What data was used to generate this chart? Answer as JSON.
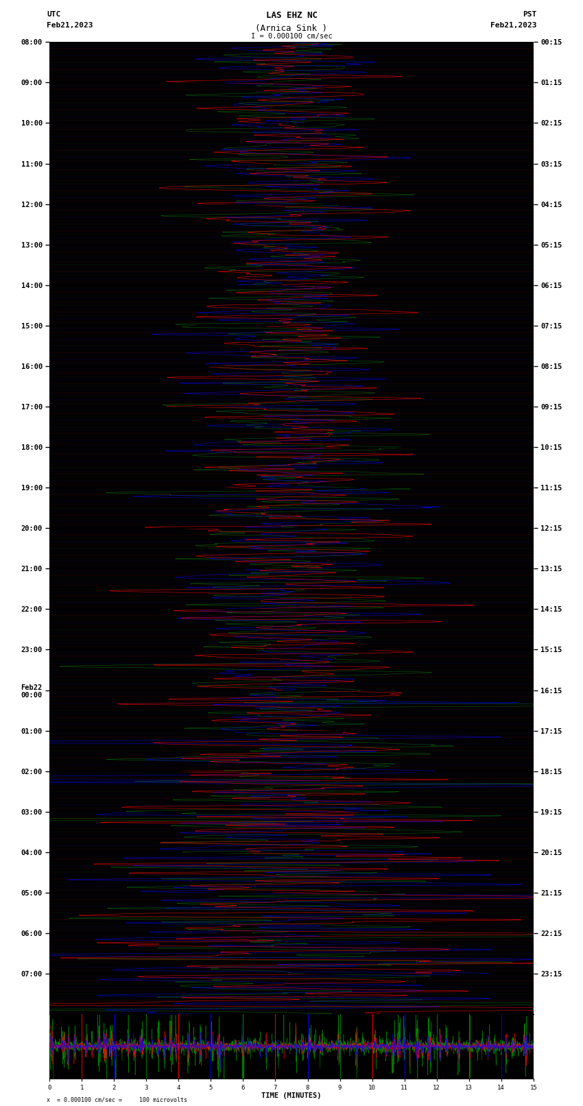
{
  "title_line1": "LAS EHZ NC",
  "title_line2": "(Arnica Sink )",
  "title_scale": "I = 0.000100 cm/sec",
  "left_label_top": "UTC",
  "left_label_date": "Feb21,2023",
  "right_label_top": "PST",
  "right_label_date": "Feb21,2023",
  "bottom_label": "TIME (MINUTES)",
  "bottom_scale": "x  = 0.000100 cm/sec =     100 microvolts",
  "utc_ticks": [
    "08:00",
    "09:00",
    "10:00",
    "11:00",
    "12:00",
    "13:00",
    "14:00",
    "15:00",
    "16:00",
    "17:00",
    "18:00",
    "19:00",
    "20:00",
    "21:00",
    "22:00",
    "23:00",
    "Feb22\n00:00",
    "01:00",
    "02:00",
    "03:00",
    "04:00",
    "05:00",
    "06:00",
    "07:00"
  ],
  "pst_ticks": [
    "00:15",
    "01:15",
    "02:15",
    "03:15",
    "04:15",
    "05:15",
    "06:15",
    "07:15",
    "08:15",
    "09:15",
    "10:15",
    "11:15",
    "12:15",
    "13:15",
    "14:15",
    "15:15",
    "16:15",
    "17:15",
    "18:15",
    "19:15",
    "20:15",
    "21:15",
    "22:15",
    "23:15"
  ],
  "bg_color": "#ffffff",
  "seismogram_bg": "#000000",
  "trace_colors": [
    "#ff0000",
    "#0000ff",
    "#008000"
  ],
  "figwidth": 8.5,
  "figheight": 16.13,
  "dpi": 100,
  "n_hours": 24,
  "samples_per_hour": 3600,
  "strip_minutes": 15,
  "strip_samples": 5000
}
